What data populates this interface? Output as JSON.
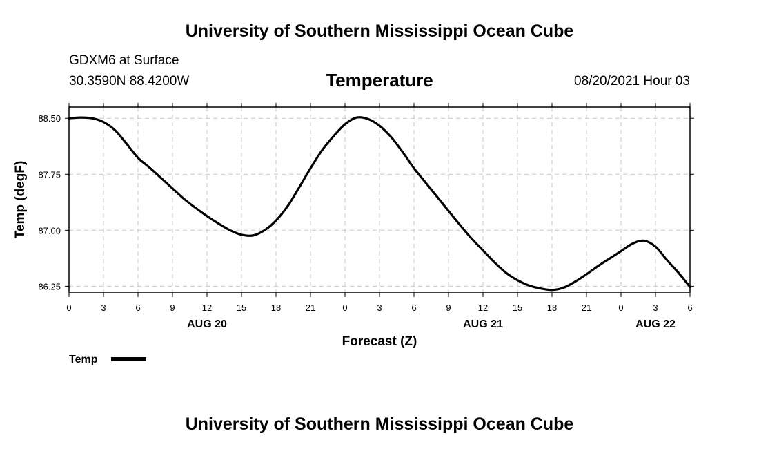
{
  "header": {
    "top_title": "University of Southern Mississippi Ocean Cube",
    "station_name": "GDXM6 at Surface",
    "coordinates": "30.3590N  88.4200W",
    "datestamp": "08/20/2021 Hour 03"
  },
  "footer": {
    "bottom_title": "University of Southern Mississippi Ocean Cube"
  },
  "chart_data": {
    "type": "line",
    "title": "Temperature",
    "xlabel": "Forecast (Z)",
    "ylabel": "Temp (degF)",
    "xlim": [
      0,
      54
    ],
    "ylim": [
      86.17,
      88.65
    ],
    "yticks": [
      86.25,
      87.0,
      87.75,
      88.5
    ],
    "ytick_labels": [
      "86.25",
      "87.00",
      "87.75",
      "88.50"
    ],
    "xticks": [
      0,
      3,
      6,
      9,
      12,
      15,
      18,
      21,
      24,
      27,
      30,
      33,
      36,
      39,
      42,
      45,
      48,
      51,
      54
    ],
    "xtick_labels": [
      "0",
      "3",
      "6",
      "9",
      "12",
      "15",
      "18",
      "21",
      "0",
      "3",
      "6",
      "9",
      "12",
      "15",
      "18",
      "21",
      "0",
      "3",
      "6"
    ],
    "day_labels": [
      {
        "x": 12,
        "label": "AUG 20"
      },
      {
        "x": 36,
        "label": "AUG 21"
      },
      {
        "x": 51,
        "label": "AUG 22"
      }
    ],
    "grid": true,
    "legend_position": "bottom-left",
    "series": [
      {
        "name": "Temp",
        "color": "#000000",
        "x": [
          0,
          1,
          2,
          3,
          4,
          5,
          6,
          7,
          8,
          9,
          10,
          11,
          12,
          13,
          14,
          15,
          16,
          17,
          18,
          19,
          20,
          21,
          22,
          23,
          24,
          25,
          26,
          27,
          28,
          29,
          30,
          31,
          32,
          33,
          34,
          35,
          36,
          37,
          38,
          39,
          40,
          41,
          42,
          43,
          44,
          45,
          46,
          47,
          48,
          49,
          50,
          51,
          52,
          53,
          54
        ],
        "values": [
          88.5,
          88.51,
          88.5,
          88.45,
          88.34,
          88.16,
          87.97,
          87.84,
          87.7,
          87.56,
          87.42,
          87.3,
          87.19,
          87.09,
          87.0,
          86.94,
          86.93,
          87.0,
          87.13,
          87.32,
          87.57,
          87.83,
          88.07,
          88.26,
          88.42,
          88.51,
          88.49,
          88.4,
          88.25,
          88.05,
          87.83,
          87.64,
          87.45,
          87.26,
          87.07,
          86.89,
          86.73,
          86.57,
          86.43,
          86.33,
          86.26,
          86.22,
          86.2,
          86.23,
          86.31,
          86.41,
          86.52,
          86.62,
          86.72,
          86.82,
          86.86,
          86.78,
          86.6,
          86.43,
          86.24
        ]
      }
    ]
  }
}
